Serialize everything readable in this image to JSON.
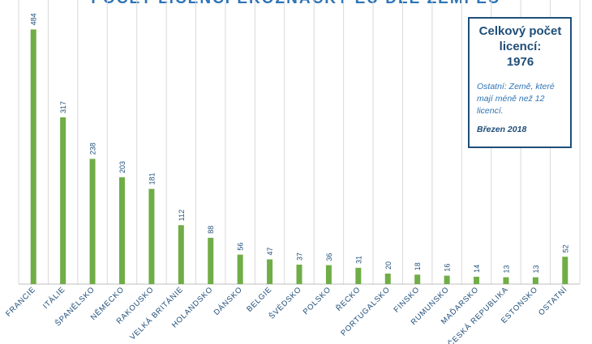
{
  "chart_data": {
    "type": "bar",
    "title": "POČET LICENCÍ EKOZNAČKY EU DLE ZEMÍ EU",
    "categories": [
      "FRANCIE",
      "ITÁLIE",
      "ŠPANĚLSKO",
      "NĚMECKO",
      "RAKOUSKO",
      "VELKÁ BRITÁNIE",
      "HOLANDSKO",
      "DÁNSKO",
      "BELGIE",
      "ŠVÉDSKO",
      "POLSKO",
      "ŘECKO",
      "PORTUGALSKO",
      "FINSKO",
      "RUMUNSKO",
      "MAĎARSKO",
      "ČESKÁ REPUBLIKA",
      "ESTONSKO",
      "OSTATNÍ"
    ],
    "values": [
      484,
      317,
      238,
      203,
      181,
      112,
      88,
      56,
      47,
      37,
      36,
      31,
      20,
      18,
      16,
      14,
      13,
      13,
      52
    ],
    "ylim": [
      0,
      540
    ],
    "grid": "vertical",
    "legend": "none",
    "colors": {
      "bar": "#70ad47",
      "label": "#1f4e79",
      "grid": "#d9d9d9",
      "axis": "#bfbfbf"
    }
  },
  "info_box": {
    "heading_line1": "Celkový počet",
    "heading_line2": "licencí:",
    "total": "1976",
    "note": "Ostatní: Země, které mají méně než 12 licencí.",
    "date": "Březen 2018"
  }
}
